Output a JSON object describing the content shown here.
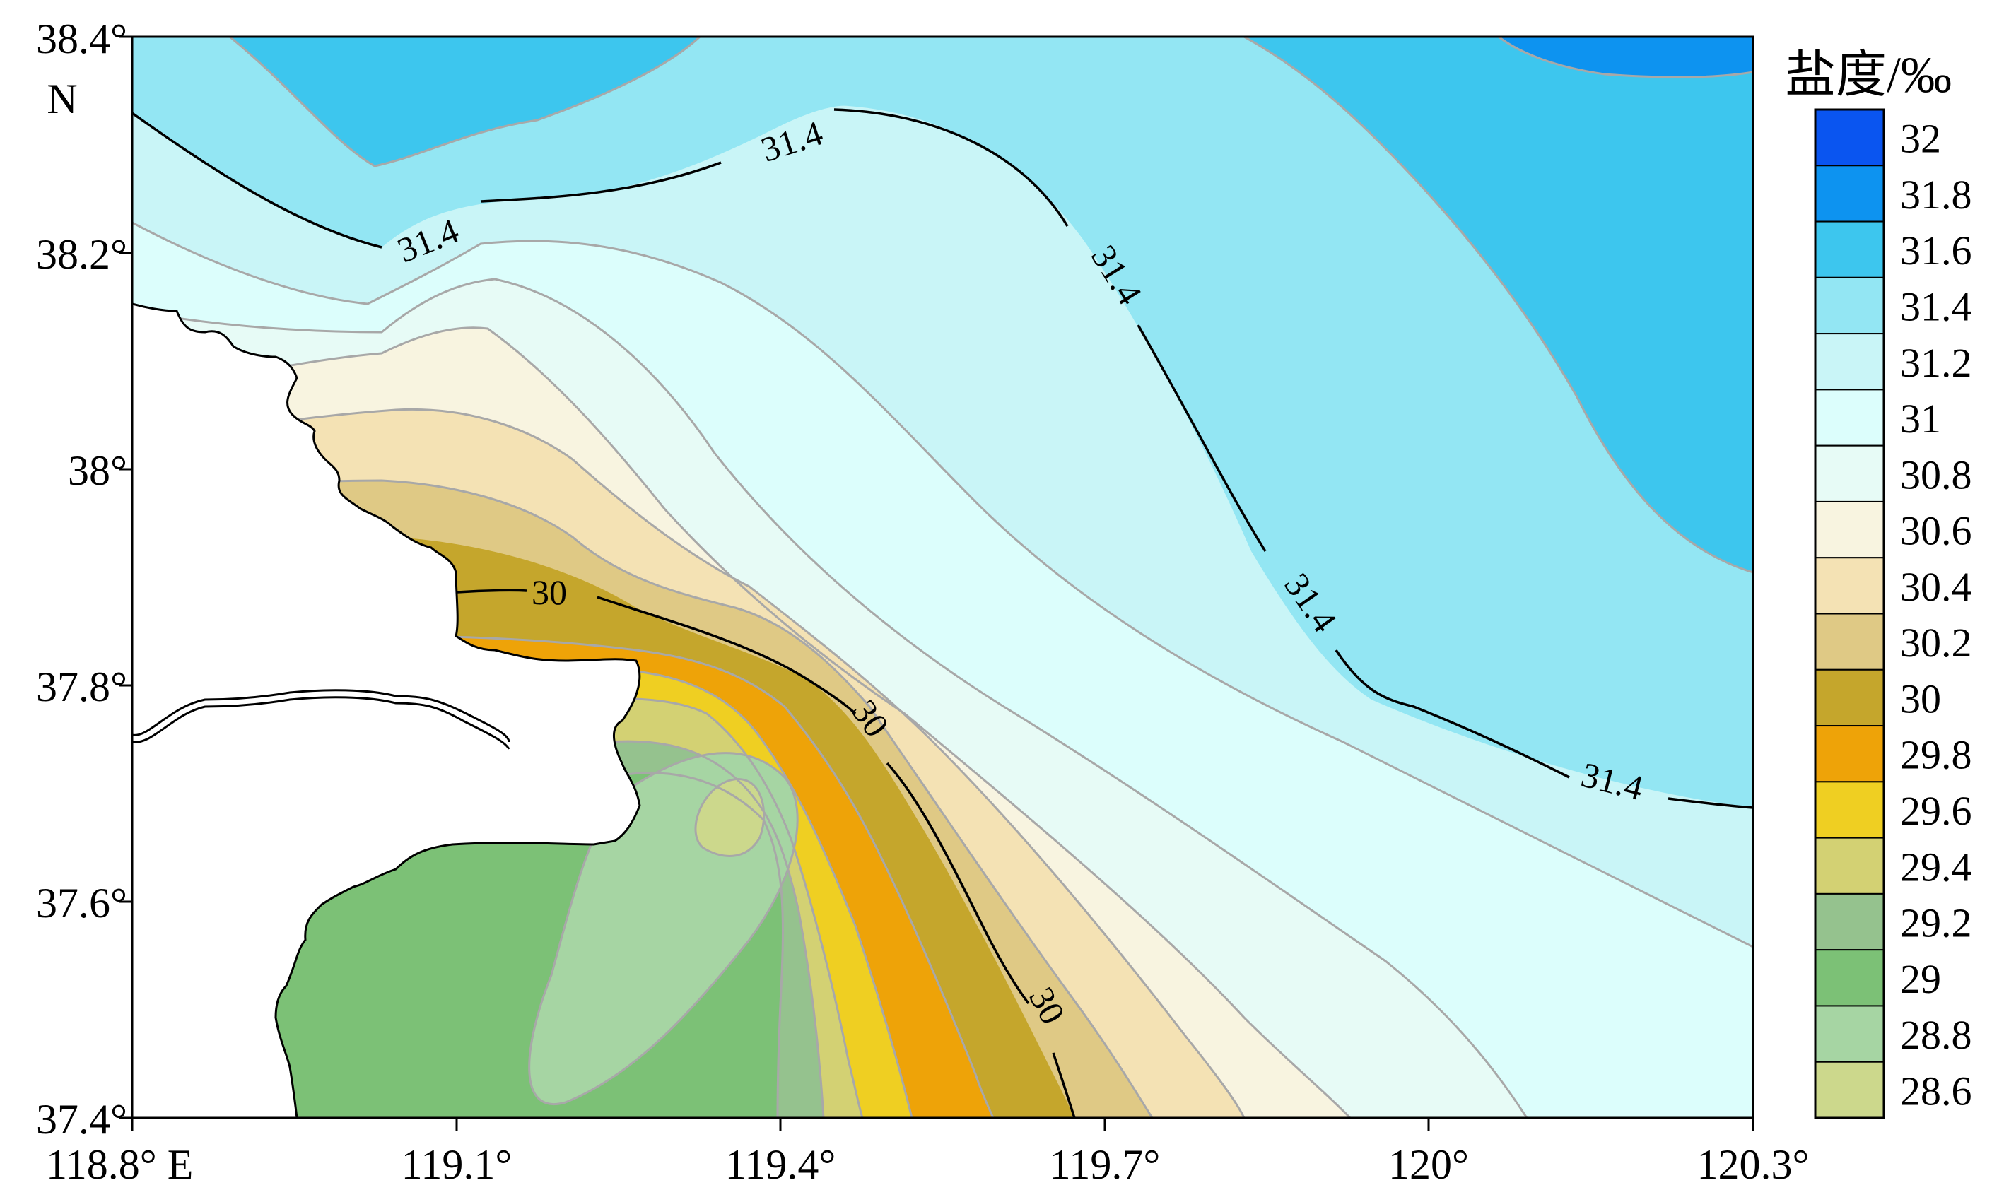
{
  "map": {
    "lon_ticks": [
      "118.8° E",
      "119.1°",
      "119.4°",
      "119.7°",
      "120°",
      "120.3°"
    ],
    "lat_ticks": [
      "38.4°",
      "38.2°",
      "38°",
      "37.8°",
      "37.6°",
      "37.4°"
    ],
    "lat_hemisphere": "N",
    "contour_labels": [
      "31.4",
      "31.4",
      "31.4",
      "31.4",
      "31.4",
      "30",
      "30",
      "30"
    ],
    "colors": {
      "s32": "#0a55f0",
      "s31_8": "#0d93f0",
      "s31_6": "#3dc6ee",
      "s31_4": "#93e6f3",
      "s31_2": "#c9f5f7",
      "s31": "#dcfefc",
      "s30_8": "#e7fbf6",
      "s30_6": "#f8f4e0",
      "s30_4": "#f4e2b4",
      "s30_2": "#dfc985",
      "s30": "#c5a62c",
      "s29_8": "#eea308",
      "s29_6": "#efcf22",
      "s29_4": "#d3d173",
      "s29_2": "#95c28e",
      "s29": "#7cc176",
      "s28_8": "#a6d5a3",
      "s28_6": "#ccd88c"
    }
  },
  "legend": {
    "title": "盐度/‰",
    "labels": [
      "32",
      "31.8",
      "31.6",
      "31.4",
      "31.2",
      "31",
      "30.8",
      "30.6",
      "30.4",
      "30.2",
      "30",
      "29.8",
      "29.6",
      "29.4",
      "29.2",
      "29",
      "28.8",
      "28.6"
    ]
  }
}
